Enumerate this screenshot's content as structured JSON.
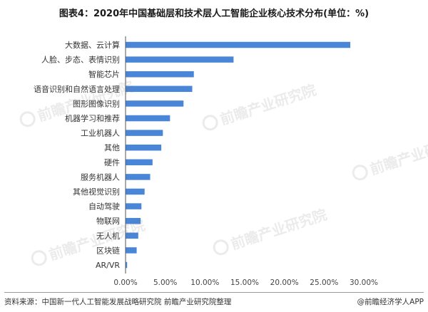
{
  "title": "图表4：2020年中国基础层和技术层人工智能企业核心技术分布(单位：%)",
  "source": "资料来源：中国新一代人工智能发展战略研究院 前瞻产业研究院整理",
  "credit": "@前瞻经济学人APP",
  "watermark": "前瞻产业研究院",
  "colors": {
    "bar": "#4a86d8",
    "axis": "#555555"
  },
  "chart_data": {
    "type": "bar",
    "orientation": "horizontal",
    "categories": [
      "大数据、云计算",
      "人脸、步态、表情识别",
      "智能芯片",
      "语音识别和自然语言处理",
      "图形图像识别",
      "机器学习和推荐",
      "工业机器人",
      "其他",
      "硬件",
      "服务机器人",
      "其他视觉识别",
      "自动驾驶",
      "物联网",
      "无人机",
      "区块链",
      "AR/VR"
    ],
    "values": [
      28.3,
      13.6,
      8.6,
      8.4,
      7.3,
      5.6,
      4.7,
      4.5,
      3.4,
      3.1,
      2.4,
      2.0,
      1.9,
      1.6,
      1.4,
      0.2
    ],
    "xticks": [
      "0.00%",
      "5.00%",
      "10.00%",
      "15.00%",
      "20.00%",
      "25.00%",
      "30.00%"
    ],
    "xlim": [
      0,
      30
    ],
    "grid": false
  }
}
